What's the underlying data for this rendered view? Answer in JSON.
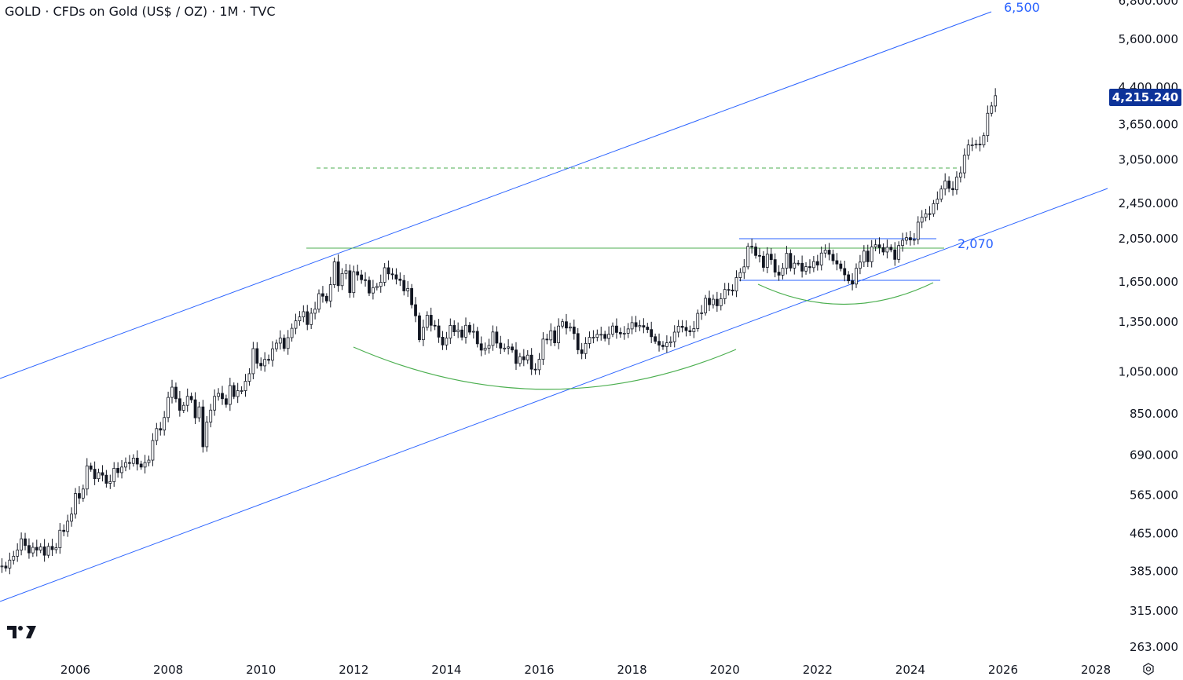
{
  "header": {
    "title": "GOLD · CFDs on Gold (US$ / OZ) · 1M · TVC"
  },
  "price_tag": {
    "value": "4,215.240"
  },
  "icons": {
    "logo": "tradingview-logo",
    "settings": "settings-icon"
  },
  "colors": {
    "channel": "#2962ff",
    "support": "#4caf50",
    "price_tag": "#0d3399",
    "candle": "#131722"
  },
  "annotations": {
    "upper_target": "6,500",
    "breakout_level": "2,070"
  },
  "chart_data": {
    "type": "candlestick",
    "title": "GOLD · CFDs on Gold (US$ / OZ) · 1M · TVC",
    "scale": "log",
    "ylim": [
      263,
      6800
    ],
    "xlim": [
      2004.37,
      2029.0
    ],
    "y_ticks": [
      {
        "value": 6800,
        "label": "6,800.000"
      },
      {
        "value": 5600,
        "label": "5,600.000"
      },
      {
        "value": 4400,
        "label": "4,400.000"
      },
      {
        "value": 3650,
        "label": "3,650.000"
      },
      {
        "value": 3050,
        "label": "3,050.000"
      },
      {
        "value": 2450,
        "label": "2,450.000"
      },
      {
        "value": 2050,
        "label": "2,050.000"
      },
      {
        "value": 1650,
        "label": "1,650.000"
      },
      {
        "value": 1350,
        "label": "1,350.000"
      },
      {
        "value": 1050,
        "label": "1,050.000"
      },
      {
        "value": 850,
        "label": "850.000"
      },
      {
        "value": 690,
        "label": "690.000"
      },
      {
        "value": 565,
        "label": "565.000"
      },
      {
        "value": 465,
        "label": "465.000"
      },
      {
        "value": 385,
        "label": "385.000"
      },
      {
        "value": 315,
        "label": "315.000"
      },
      {
        "value": 263,
        "label": "263.000"
      }
    ],
    "x_ticks": [
      "2006",
      "2008",
      "2010",
      "2012",
      "2014",
      "2016",
      "2018",
      "2020",
      "2022",
      "2024",
      "2026",
      "2028"
    ],
    "start": "2004-05",
    "monthly_close": [
      394,
      395,
      391,
      407,
      415,
      428,
      453,
      438,
      422,
      434,
      428,
      435,
      417,
      436,
      429,
      433,
      473,
      470,
      495,
      513,
      569,
      556,
      582,
      654,
      643,
      613,
      632,
      624,
      599,
      604,
      646,
      632,
      650,
      665,
      662,
      680,
      660,
      650,
      665,
      673,
      743,
      789,
      783,
      834,
      923,
      972,
      917,
      865,
      887,
      928,
      912,
      833,
      880,
      720,
      815,
      866,
      928,
      942,
      917,
      891,
      980,
      927,
      955,
      955,
      1001,
      1040,
      1180,
      1096,
      1082,
      1118,
      1113,
      1179,
      1213,
      1244,
      1181,
      1247,
      1307,
      1357,
      1384,
      1421,
      1332,
      1410,
      1439,
      1556,
      1536,
      1500,
      1628,
      1826,
      1620,
      1722,
      1746,
      1564,
      1738,
      1710,
      1669,
      1664,
      1561,
      1604,
      1614,
      1648,
      1773,
      1719,
      1711,
      1675,
      1663,
      1578,
      1597,
      1472,
      1392,
      1234,
      1313,
      1396,
      1327,
      1323,
      1250,
      1202,
      1244,
      1326,
      1284,
      1296,
      1250,
      1327,
      1282,
      1287,
      1209,
      1171,
      1183,
      1199,
      1283,
      1213,
      1183,
      1183,
      1190,
      1172,
      1095,
      1133,
      1115,
      1142,
      1064,
      1061,
      1118,
      1238,
      1233,
      1291,
      1215,
      1322,
      1351,
      1309,
      1316,
      1273,
      1173,
      1151,
      1211,
      1249,
      1249,
      1268,
      1268,
      1242,
      1269,
      1322,
      1280,
      1271,
      1275,
      1303,
      1345,
      1318,
      1325,
      1315,
      1299,
      1253,
      1224,
      1201,
      1192,
      1215,
      1222,
      1282,
      1321,
      1313,
      1292,
      1284,
      1305,
      1409,
      1413,
      1520,
      1472,
      1513,
      1464,
      1517,
      1589,
      1585,
      1577,
      1687,
      1730,
      1781,
      1975,
      1968,
      1886,
      1879,
      1776,
      1898,
      1847,
      1734,
      1708,
      1769,
      1906,
      1770,
      1814,
      1813,
      1743,
      1783,
      1774,
      1829,
      1797,
      1909,
      1937,
      1897,
      1837,
      1807,
      1766,
      1711,
      1660,
      1633,
      1768,
      1824,
      1928,
      1827,
      1969,
      1990,
      1962,
      1919,
      1965,
      1940,
      1849,
      1983,
      2036,
      2063,
      2039,
      2044,
      2230,
      2286,
      2327,
      2326,
      2448,
      2503,
      2635,
      2744,
      2643,
      2625,
      2798,
      2858,
      3124,
      3289,
      3289,
      3303,
      3290,
      3448,
      3858,
      4003,
      4215
    ],
    "drawings": [
      {
        "type": "trend-channel-upper",
        "target": 6500
      },
      {
        "type": "trend-channel-lower"
      },
      {
        "type": "horizontal-resistance",
        "value": 2070
      },
      {
        "type": "horizontal-dashed",
        "value": 3000
      },
      {
        "type": "range-box",
        "top": 2070,
        "bottom": 1650
      },
      {
        "type": "arc",
        "label": "cup 2011-2020"
      },
      {
        "type": "arc",
        "label": "handle 2020-2024"
      }
    ]
  }
}
